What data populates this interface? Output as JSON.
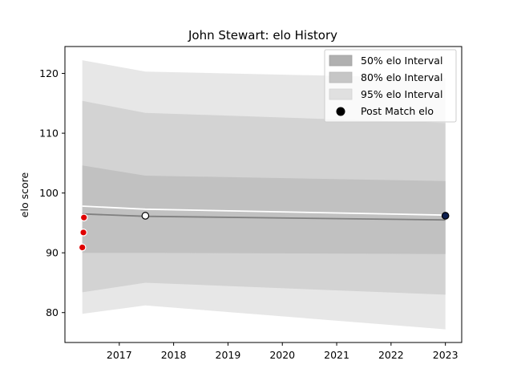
{
  "chart_data": {
    "type": "area",
    "title": "John Stewart: elo History",
    "xlabel": "",
    "ylabel": "elo score",
    "xlim": [
      2016.0,
      2023.3
    ],
    "ylim": [
      75,
      124.5
    ],
    "x_ticks": [
      {
        "value": 2017,
        "label": "2017"
      },
      {
        "value": 2018,
        "label": "2018"
      },
      {
        "value": 2019,
        "label": "2019"
      },
      {
        "value": 2020,
        "label": "2020"
      },
      {
        "value": 2021,
        "label": "2021"
      },
      {
        "value": 2022,
        "label": "2022"
      },
      {
        "value": 2023,
        "label": "2023"
      }
    ],
    "y_ticks": [
      {
        "value": 80,
        "label": "80"
      },
      {
        "value": 90,
        "label": "90"
      },
      {
        "value": 100,
        "label": "100"
      },
      {
        "value": 110,
        "label": "110"
      },
      {
        "value": 120,
        "label": "120"
      }
    ],
    "grid": false,
    "legend_position": "top-right",
    "bands": [
      {
        "name": "95% elo Interval",
        "color": "#e3e3e3",
        "x": [
          2016.32,
          2017.48,
          2023.0
        ],
        "upper": [
          122.2,
          120.3,
          119.2
        ],
        "lower": [
          79.8,
          81.2,
          77.2
        ]
      },
      {
        "name": "80% elo Interval",
        "color": "#cfcfcf",
        "x": [
          2016.32,
          2017.48,
          2023.0
        ],
        "upper": [
          115.4,
          113.4,
          111.7
        ],
        "lower": [
          83.4,
          85.0,
          83.0
        ]
      },
      {
        "name": "50% elo Interval",
        "color": "#bdbdbd",
        "x": [
          2016.32,
          2017.48,
          2023.0
        ],
        "upper": [
          104.6,
          102.9,
          102.0
        ],
        "lower": [
          90.0,
          90.0,
          89.8
        ]
      }
    ],
    "mean_line": {
      "color": "#808080",
      "x": [
        2016.32,
        2017.48,
        2023.0
      ],
      "y": [
        96.5,
        96.1,
        95.5
      ]
    },
    "trend_line": {
      "color": "#ffffff",
      "x": [
        2016.32,
        2017.48,
        2023.0
      ],
      "y": [
        97.8,
        97.3,
        96.3
      ]
    },
    "red_points": {
      "color": "#e00000",
      "points": [
        {
          "x": 2016.35,
          "y": 95.9
        },
        {
          "x": 2016.34,
          "y": 93.4
        },
        {
          "x": 2016.32,
          "y": 90.9
        }
      ]
    },
    "post_match_points": {
      "name": "Post Match elo",
      "points": [
        {
          "x": 2017.48,
          "y": 96.2,
          "fill": "#ffffff"
        },
        {
          "x": 2023.0,
          "y": 96.2,
          "fill": "#0d1f4f"
        }
      ]
    }
  }
}
